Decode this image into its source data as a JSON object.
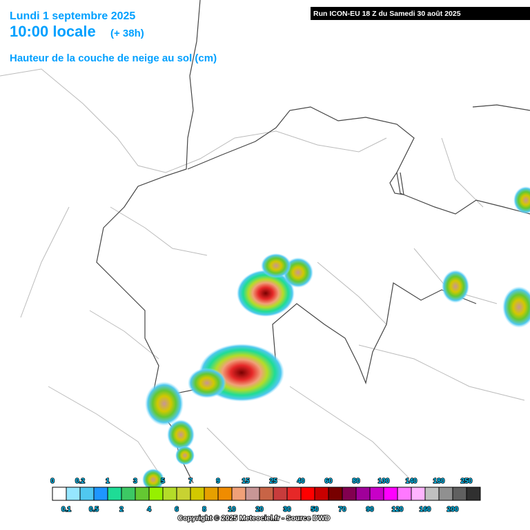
{
  "header": {
    "date": "Lundi 1 septembre 2025",
    "time": "10:00 locale",
    "lead": "(+ 38h)",
    "parameter": "Hauteur de la couche de neige au sol (cm)",
    "run": "Run ICON-EU 18 Z du Samedi 30 août 2025"
  },
  "legend": {
    "labels": [
      "0",
      "0.1",
      "0.2",
      "0.5",
      "1",
      "2",
      "3",
      "4",
      "5",
      "6",
      "7",
      "8",
      "9",
      "10",
      "15",
      "20",
      "25",
      "30",
      "40",
      "50",
      "60",
      "70",
      "80",
      "90",
      "100",
      "120",
      "140",
      "160",
      "180",
      "200",
      "250"
    ],
    "colors": [
      "#ffffff",
      "#96e6ff",
      "#50c8f0",
      "#1e96ff",
      "#1edc96",
      "#3cc864",
      "#64c832",
      "#96f000",
      "#b4dc28",
      "#c8d232",
      "#d2c800",
      "#e6a000",
      "#f08c00",
      "#f0a078",
      "#c89696",
      "#c86446",
      "#c83c3c",
      "#e62828",
      "#ff0000",
      "#c80000",
      "#780000",
      "#820050",
      "#a0009a",
      "#c800c8",
      "#ff00ff",
      "#ff78ff",
      "#ffb4ff",
      "#c0c0c0",
      "#909090",
      "#606060",
      "#303030"
    ]
  },
  "copyright": "Copyright © 2025 Meteociel.fr - Source DWD"
}
